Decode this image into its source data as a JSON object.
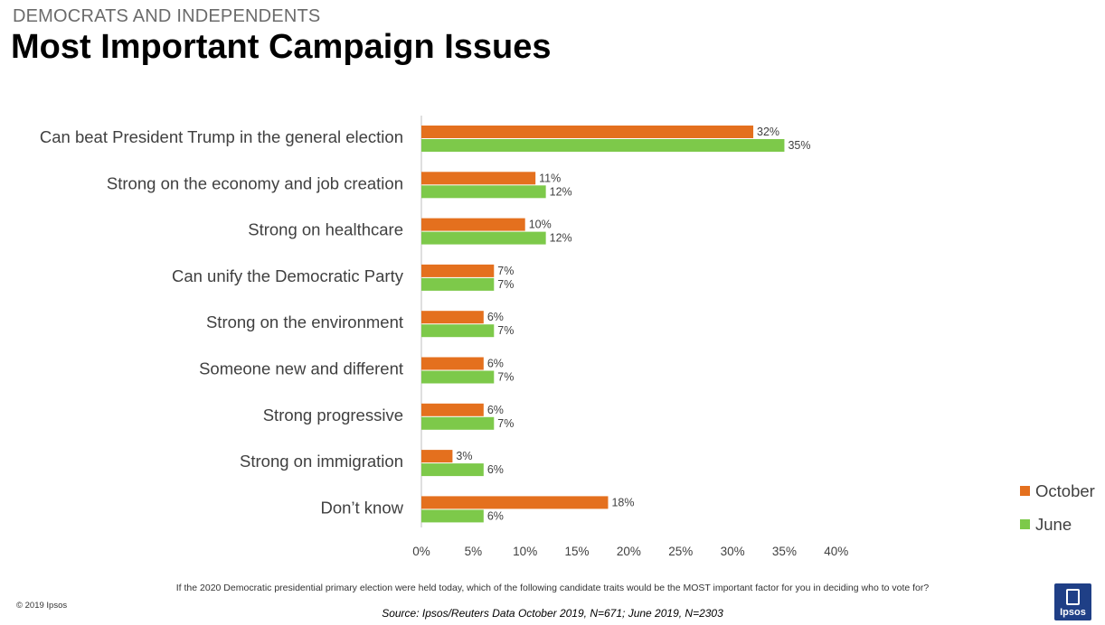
{
  "header": {
    "subtitle": "DEMOCRATS AND INDEPENDENTS",
    "title": "Most Important Campaign Issues"
  },
  "chart_data": {
    "type": "bar",
    "orientation": "horizontal",
    "categories": [
      "Can beat President Trump in the general election",
      "Strong on the economy and job creation",
      "Strong on healthcare",
      "Can unify the Democratic Party",
      "Strong on the environment",
      "Someone new and different",
      "Strong progressive",
      "Strong on immigration",
      "Don’t know"
    ],
    "series": [
      {
        "name": "October",
        "color": "#e4701e",
        "values": [
          32,
          11,
          10,
          7,
          6,
          6,
          6,
          3,
          18
        ],
        "labels": [
          "32%",
          "11%",
          "10%",
          "7%",
          "6%",
          "6%",
          "6%",
          "3%",
          "18%"
        ]
      },
      {
        "name": "June",
        "color": "#7dc94a",
        "values": [
          35,
          12,
          12,
          7,
          7,
          7,
          7,
          6,
          6
        ],
        "labels": [
          "35%",
          "12%",
          "12%",
          "7%",
          "7%",
          "7%",
          "7%",
          "6%",
          "6%"
        ]
      }
    ],
    "xlim": [
      0,
      40
    ],
    "xticks": [
      "0%",
      "5%",
      "10%",
      "15%",
      "20%",
      "25%",
      "30%",
      "35%",
      "40%"
    ],
    "xtick_values": [
      0,
      5,
      10,
      15,
      20,
      25,
      30,
      35,
      40
    ],
    "legend": "right"
  },
  "footer": {
    "question": "If the 2020 Democratic presidential primary election were held today, which of the following candidate traits would be the MOST important factor for you in deciding who to vote for?",
    "copyright": "© 2019 Ipsos",
    "source": "Source: Ipsos/Reuters Data October 2019, N=671; June 2019, N=2303",
    "logo_text": "Ipsos"
  }
}
